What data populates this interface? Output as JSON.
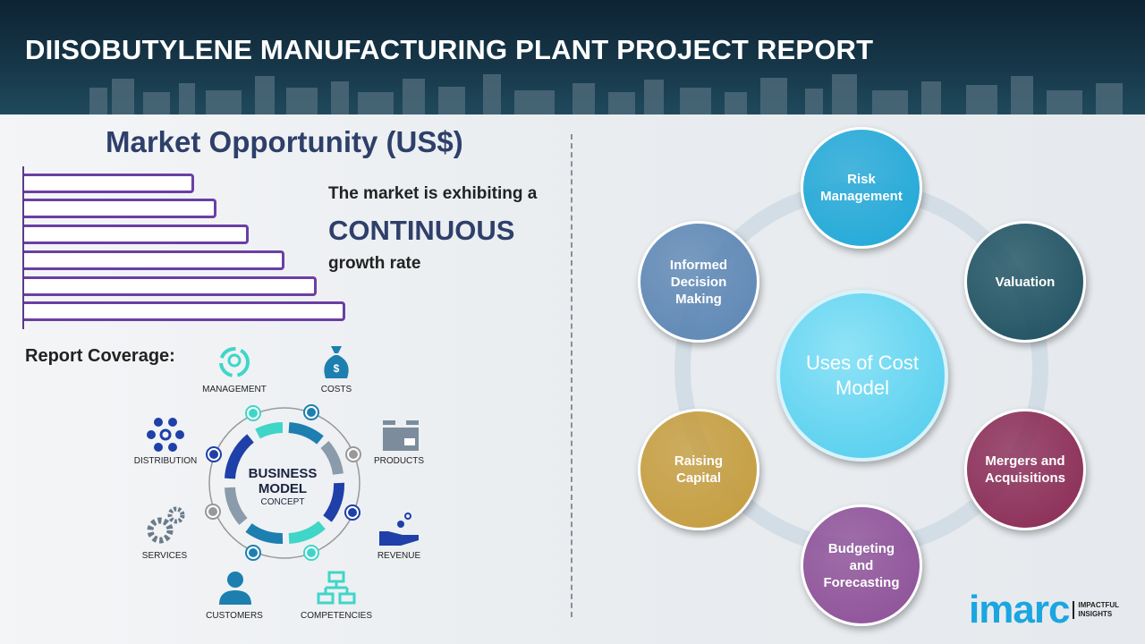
{
  "header": {
    "title": "DIISOBUTYLENE MANUFACTURING PLANT PROJECT REPORT"
  },
  "market": {
    "title": "Market Opportunity (US$)",
    "line1": "The market is exhibiting a",
    "emphasis": "CONTINUOUS",
    "line2": "growth rate",
    "bar_levels": [
      0.53,
      0.6,
      0.7,
      0.81,
      0.91,
      1.0
    ]
  },
  "coverage": {
    "title": "Report Coverage:",
    "center_line1": "BUSINESS",
    "center_line2": "MODEL",
    "center_line3": "CONCEPT",
    "items": [
      "MANAGEMENT",
      "COSTS",
      "DISTRIBUTION",
      "PRODUCTS",
      "SERVICES",
      "REVENUE",
      "CUSTOMERS",
      "COMPETENCIES"
    ]
  },
  "cost_model": {
    "center": "Uses of Cost Model",
    "nodes": [
      {
        "label": "Risk Management",
        "color": "#1fa8d8"
      },
      {
        "label": "Valuation",
        "color": "#1d5060"
      },
      {
        "label": "Mergers and Acquisitions",
        "color": "#8a2a55"
      },
      {
        "label": "Budgeting and Forecasting",
        "color": "#8d4f97"
      },
      {
        "label": "Raising Capital",
        "color": "#c59c3c"
      },
      {
        "label": "Informed Decision Making",
        "color": "#5c86b4"
      }
    ]
  },
  "logo": {
    "name": "imarc",
    "tagline_1": "IMPACTFUL",
    "tagline_2": "INSIGHTS"
  }
}
